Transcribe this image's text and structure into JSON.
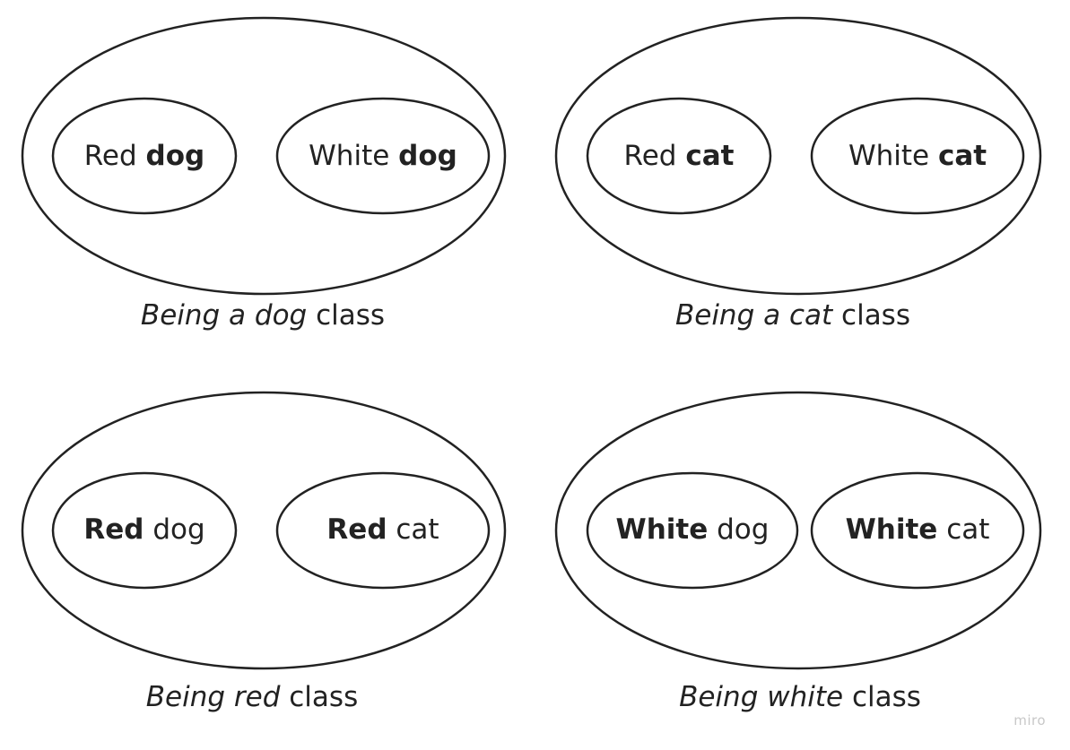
{
  "groups": {
    "dog": {
      "item1": {
        "a": "Red",
        "b": "dog"
      },
      "item2": {
        "a": "White",
        "b": "dog"
      },
      "caption": {
        "a": "Being a dog",
        "b": "class"
      }
    },
    "cat": {
      "item1": {
        "a": "Red",
        "b": "cat"
      },
      "item2": {
        "a": "White",
        "b": "cat"
      },
      "caption": {
        "a": "Being a cat",
        "b": "class"
      }
    },
    "red": {
      "item1": {
        "a": "Red",
        "b": "dog"
      },
      "item2": {
        "a": "Red",
        "b": "cat"
      },
      "caption": {
        "a": "Being red",
        "b": "class"
      }
    },
    "white": {
      "item1": {
        "a": "White",
        "b": "dog"
      },
      "item2": {
        "a": "White",
        "b": "cat"
      },
      "caption": {
        "a": "Being white",
        "b": "class"
      }
    }
  },
  "watermark": "miro"
}
